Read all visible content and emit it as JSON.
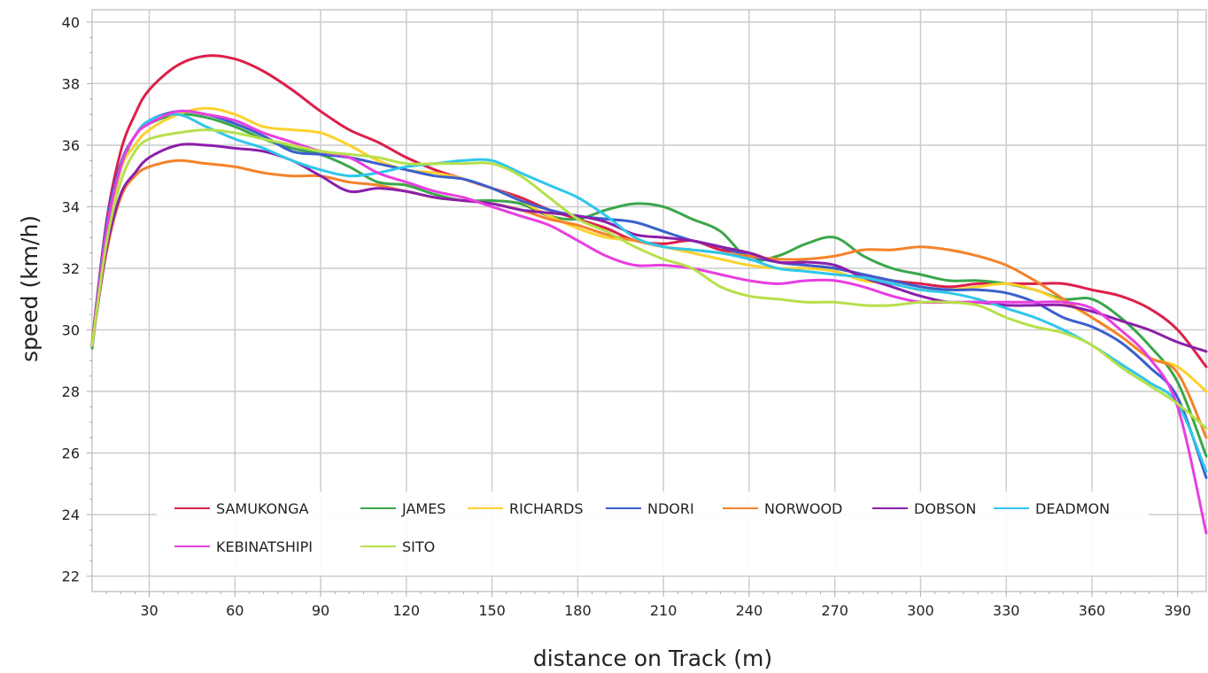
{
  "chart_data": {
    "type": "line",
    "xlabel": "distance on Track (m)",
    "ylabel": "speed (km/h)",
    "xlim": [
      10,
      400
    ],
    "ylim": [
      21.5,
      40.4
    ],
    "x_ticks": [
      30,
      60,
      90,
      120,
      150,
      180,
      210,
      240,
      270,
      300,
      330,
      360,
      390
    ],
    "y_ticks": [
      22,
      24,
      26,
      28,
      30,
      32,
      34,
      36,
      38,
      40
    ],
    "grid": true,
    "legend": "bottom",
    "x": [
      10,
      15,
      20,
      25,
      30,
      40,
      50,
      60,
      70,
      80,
      90,
      100,
      110,
      120,
      130,
      140,
      150,
      160,
      170,
      180,
      190,
      200,
      210,
      220,
      230,
      240,
      250,
      260,
      270,
      280,
      290,
      300,
      310,
      320,
      330,
      340,
      350,
      360,
      370,
      380,
      390,
      400
    ],
    "series": [
      {
        "name": "SAMUKONGA",
        "color": "#dc1f4a",
        "values": [
          29.6,
          33.5,
          35.8,
          37.0,
          37.8,
          38.6,
          38.9,
          38.8,
          38.4,
          37.8,
          37.1,
          36.5,
          36.1,
          35.6,
          35.2,
          34.9,
          34.6,
          34.3,
          33.9,
          33.6,
          33.3,
          32.9,
          32.8,
          32.9,
          32.6,
          32.5,
          32.2,
          32.1,
          32.0,
          31.8,
          31.6,
          31.5,
          31.4,
          31.5,
          31.5,
          31.5,
          31.5,
          31.3,
          31.1,
          30.7,
          30.0,
          28.8
        ]
      },
      {
        "name": "JAMES",
        "color": "#3aa648",
        "values": [
          29.4,
          33.0,
          35.2,
          36.3,
          36.7,
          37.0,
          36.9,
          36.6,
          36.2,
          35.9,
          35.7,
          35.3,
          34.8,
          34.7,
          34.4,
          34.2,
          34.2,
          34.1,
          33.7,
          33.6,
          33.9,
          34.1,
          34.0,
          33.6,
          33.2,
          32.3,
          32.4,
          32.8,
          33.0,
          32.4,
          32.0,
          31.8,
          31.6,
          31.6,
          31.5,
          31.3,
          31.0,
          31.0,
          30.4,
          29.5,
          28.3,
          25.9
        ]
      },
      {
        "name": "RICHARDS",
        "color": "#fdd12c",
        "values": [
          29.5,
          33.0,
          35.2,
          36.0,
          36.5,
          37.0,
          37.2,
          37.0,
          36.6,
          36.5,
          36.4,
          36.0,
          35.5,
          35.2,
          35.1,
          34.9,
          34.6,
          34.2,
          33.7,
          33.3,
          33.0,
          32.9,
          32.7,
          32.5,
          32.3,
          32.1,
          32.0,
          32.0,
          31.9,
          31.6,
          31.5,
          31.3,
          31.3,
          31.4,
          31.5,
          31.3,
          30.9,
          30.4,
          29.8,
          29.1,
          28.8,
          28.0
        ]
      },
      {
        "name": "NDORI",
        "color": "#3a5fcd",
        "values": [
          29.5,
          33.4,
          35.4,
          36.3,
          36.8,
          37.1,
          37.0,
          36.7,
          36.3,
          35.8,
          35.7,
          35.6,
          35.4,
          35.2,
          35.0,
          34.9,
          34.6,
          34.2,
          33.9,
          33.7,
          33.6,
          33.5,
          33.2,
          32.9,
          32.7,
          32.4,
          32.2,
          32.1,
          32.0,
          31.8,
          31.6,
          31.4,
          31.3,
          31.3,
          31.2,
          30.9,
          30.4,
          30.1,
          29.6,
          28.8,
          27.8,
          25.2
        ]
      },
      {
        "name": "NORWOOD",
        "color": "#f5822a",
        "values": [
          29.6,
          32.5,
          34.3,
          35.0,
          35.3,
          35.5,
          35.4,
          35.3,
          35.1,
          35.0,
          35.0,
          34.8,
          34.7,
          34.5,
          34.3,
          34.2,
          34.1,
          33.9,
          33.6,
          33.4,
          33.1,
          32.9,
          32.7,
          32.6,
          32.5,
          32.4,
          32.3,
          32.3,
          32.4,
          32.6,
          32.6,
          32.7,
          32.6,
          32.4,
          32.1,
          31.6,
          31.0,
          30.4,
          29.8,
          29.1,
          28.6,
          26.5
        ]
      },
      {
        "name": "DOBSON",
        "color": "#8b1fa9",
        "values": [
          29.5,
          32.6,
          34.4,
          35.1,
          35.6,
          36.0,
          36.0,
          35.9,
          35.8,
          35.5,
          35.0,
          34.5,
          34.6,
          34.5,
          34.3,
          34.2,
          34.1,
          33.9,
          33.8,
          33.7,
          33.5,
          33.1,
          33.0,
          32.9,
          32.7,
          32.5,
          32.2,
          32.2,
          32.1,
          31.7,
          31.4,
          31.1,
          30.9,
          30.9,
          30.8,
          30.8,
          30.8,
          30.6,
          30.3,
          30.0,
          29.6,
          29.3
        ]
      },
      {
        "name": "DEADMON",
        "color": "#2fc6ea",
        "values": [
          29.5,
          33.2,
          35.3,
          36.3,
          36.8,
          37.0,
          36.6,
          36.2,
          35.9,
          35.5,
          35.2,
          35.0,
          35.1,
          35.3,
          35.4,
          35.5,
          35.5,
          35.1,
          34.7,
          34.3,
          33.7,
          33.0,
          32.7,
          32.6,
          32.5,
          32.3,
          32.0,
          31.9,
          31.8,
          31.7,
          31.5,
          31.3,
          31.2,
          31.0,
          30.7,
          30.4,
          30.0,
          29.5,
          28.9,
          28.3,
          27.6,
          25.4
        ]
      },
      {
        "name": "KEBINATSHIPI",
        "color": "#e83ee0",
        "values": [
          29.5,
          33.2,
          35.3,
          36.3,
          36.7,
          37.1,
          37.0,
          36.8,
          36.4,
          36.1,
          35.8,
          35.6,
          35.1,
          34.8,
          34.5,
          34.3,
          34.0,
          33.7,
          33.4,
          32.9,
          32.4,
          32.1,
          32.1,
          32.0,
          31.8,
          31.6,
          31.5,
          31.6,
          31.6,
          31.4,
          31.1,
          30.9,
          30.9,
          30.9,
          30.9,
          30.9,
          30.9,
          30.7,
          30.0,
          29.1,
          27.5,
          23.4
        ]
      },
      {
        "name": "SITO",
        "color": "#b6e04a",
        "values": [
          29.5,
          32.8,
          34.8,
          35.8,
          36.2,
          36.4,
          36.5,
          36.4,
          36.2,
          36.0,
          35.8,
          35.7,
          35.6,
          35.4,
          35.4,
          35.4,
          35.4,
          35.0,
          34.3,
          33.6,
          33.2,
          32.7,
          32.3,
          32.0,
          31.4,
          31.1,
          31.0,
          30.9,
          30.9,
          30.8,
          30.8,
          30.9,
          30.9,
          30.8,
          30.4,
          30.1,
          29.9,
          29.5,
          28.8,
          28.2,
          27.6,
          26.8
        ]
      }
    ]
  }
}
